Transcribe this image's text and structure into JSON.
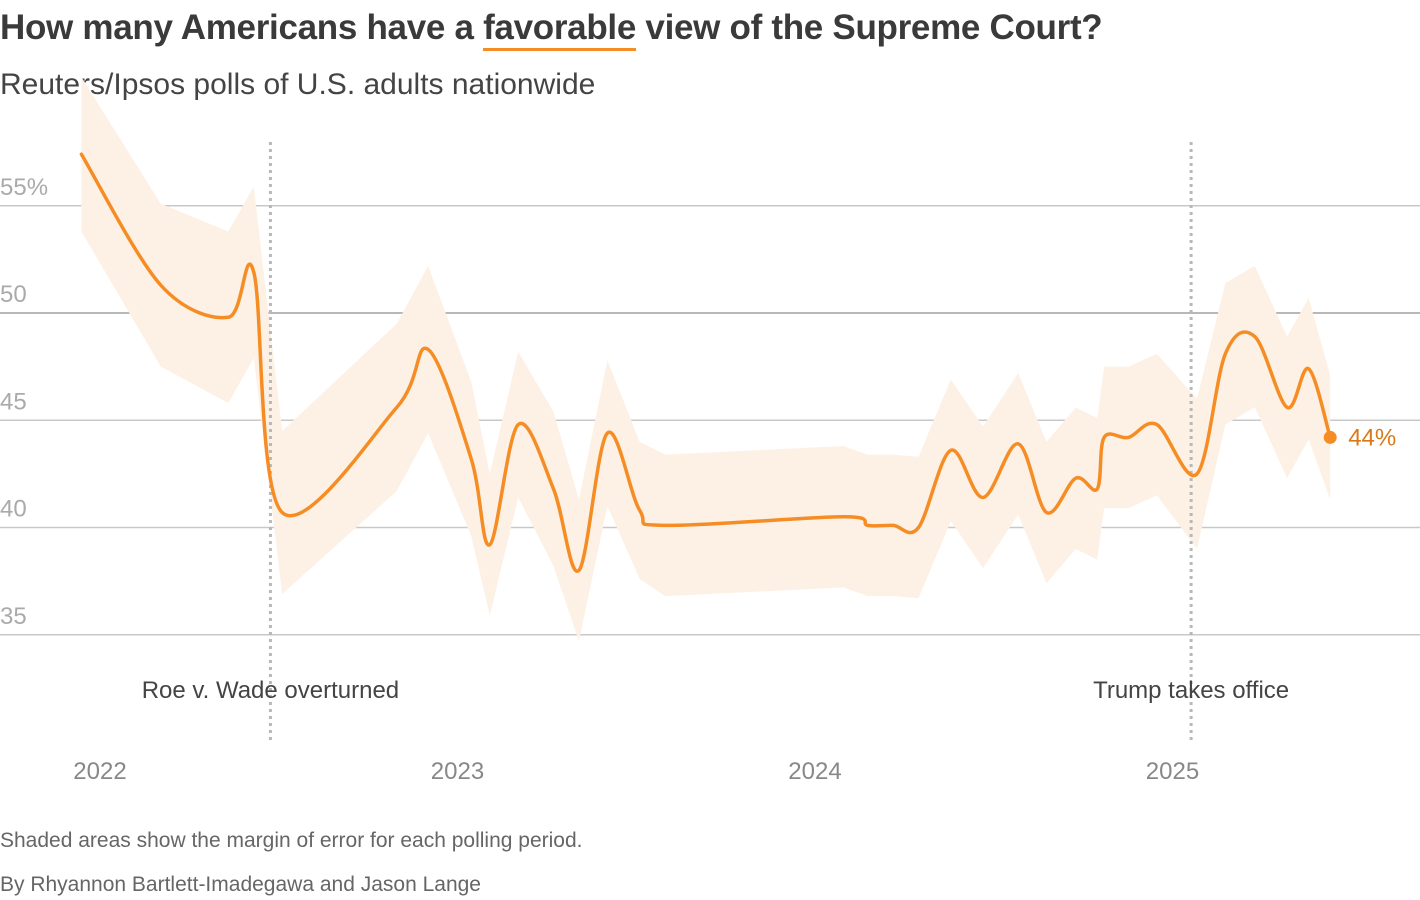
{
  "header": {
    "title_before": "How many Americans have a ",
    "title_highlight": "favorable",
    "title_after": " view of the Supreme Court?",
    "subtitle": "Reuters/Ipsos polls of U.S. adults nationwide"
  },
  "footer": {
    "note": "Shaded areas show the margin of error for each polling period.",
    "byline": "By Rhyannon Bartlett-Imadegawa and Jason Lange"
  },
  "chart_data": {
    "type": "line",
    "title": "How many Americans have a favorable view of the Supreme Court?",
    "ylim": [
      35,
      57
    ],
    "y_ticks": [
      55,
      50,
      45,
      40,
      35
    ],
    "y_tick_labels": [
      "55%",
      "50",
      "45",
      "40",
      "35"
    ],
    "x_ticks": [
      "2022",
      "2023",
      "2024",
      "2025"
    ],
    "grid": true,
    "colors": {
      "line": "#f58d24",
      "band": "#fdf1e6",
      "label": "#d97a1a",
      "grid": "#c8c8c8",
      "grid_50": "#a0a0a0"
    },
    "end_label": "44%",
    "annotations": [
      {
        "date": "2022-06-24",
        "label": "Roe v. Wade overturned"
      },
      {
        "date": "2025-01-20",
        "label": "Trump takes office"
      }
    ],
    "series": [
      {
        "points": [
          {
            "date": "2021-12-13",
            "value": 57.4,
            "moe": 3.6
          },
          {
            "date": "2022-03-04",
            "value": 51.3,
            "moe": 3.8
          },
          {
            "date": "2022-05-12",
            "value": 49.8,
            "moe": 4.0
          },
          {
            "date": "2022-06-07",
            "value": 51.9,
            "moe": 4.0
          },
          {
            "date": "2022-07-06",
            "value": 40.7,
            "moe": 3.8
          },
          {
            "date": "2022-10-31",
            "value": 45.6,
            "moe": 3.9
          },
          {
            "date": "2022-12-02",
            "value": 48.3,
            "moe": 3.9
          },
          {
            "date": "2023-01-15",
            "value": 43.2,
            "moe": 3.6
          },
          {
            "date": "2023-02-03",
            "value": 39.2,
            "moe": 3.3
          },
          {
            "date": "2023-03-04",
            "value": 44.8,
            "moe": 3.4
          },
          {
            "date": "2023-04-09",
            "value": 41.8,
            "moe": 3.6
          },
          {
            "date": "2023-05-05",
            "value": 38.0,
            "moe": 3.3
          },
          {
            "date": "2023-06-03",
            "value": 44.4,
            "moe": 3.4
          },
          {
            "date": "2023-07-06",
            "value": 40.8,
            "moe": 3.2
          },
          {
            "date": "2023-08-01",
            "value": 40.1,
            "moe": 3.3
          },
          {
            "date": "2024-01-30",
            "value": 40.5,
            "moe": 3.3
          },
          {
            "date": "2024-02-24",
            "value": 40.1,
            "moe": 3.3
          },
          {
            "date": "2024-03-21",
            "value": 40.1,
            "moe": 3.3
          },
          {
            "date": "2024-04-16",
            "value": 40.0,
            "moe": 3.3
          },
          {
            "date": "2024-05-19",
            "value": 43.6,
            "moe": 3.3
          },
          {
            "date": "2024-06-21",
            "value": 41.4,
            "moe": 3.3
          },
          {
            "date": "2024-07-27",
            "value": 43.9,
            "moe": 3.3
          },
          {
            "date": "2024-08-25",
            "value": 40.7,
            "moe": 3.3
          },
          {
            "date": "2024-09-24",
            "value": 42.3,
            "moe": 3.3
          },
          {
            "date": "2024-10-16",
            "value": 41.8,
            "moe": 3.3
          },
          {
            "date": "2024-10-23",
            "value": 44.2,
            "moe": 3.3
          },
          {
            "date": "2024-11-17",
            "value": 44.2,
            "moe": 3.3
          },
          {
            "date": "2024-12-16",
            "value": 44.8,
            "moe": 3.3
          },
          {
            "date": "2025-01-26",
            "value": 42.5,
            "moe": 3.5
          },
          {
            "date": "2025-02-24",
            "value": 48.1,
            "moe": 3.3
          },
          {
            "date": "2025-03-26",
            "value": 48.9,
            "moe": 3.3
          },
          {
            "date": "2025-04-28",
            "value": 45.6,
            "moe": 3.3
          },
          {
            "date": "2025-05-20",
            "value": 47.4,
            "moe": 3.3
          },
          {
            "date": "2025-06-11",
            "value": 44.2,
            "moe": 2.9
          }
        ]
      }
    ]
  }
}
